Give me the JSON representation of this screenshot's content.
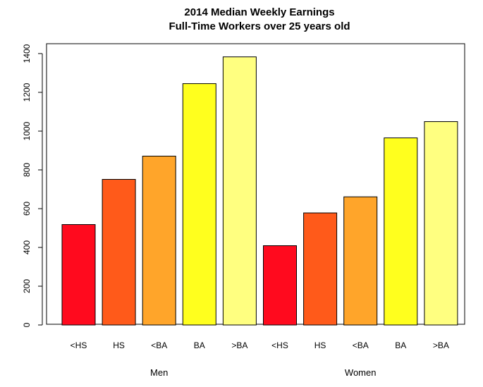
{
  "chart_data": {
    "type": "bar",
    "title": "2014 Median Weekly Earnings",
    "subtitle": "Full-Time Workers over 25 years old",
    "xlabel": "",
    "ylabel": "",
    "ylim": [
      0,
      1400
    ],
    "yticks": [
      0,
      200,
      400,
      600,
      800,
      1000,
      1200,
      1400
    ],
    "grid": false,
    "legend": "none",
    "groups": [
      {
        "name": "Men",
        "categories": [
          "<HS",
          "HS",
          "<BA",
          "BA",
          ">BA"
        ],
        "values": [
          518,
          751,
          871,
          1245,
          1383
        ]
      },
      {
        "name": "Women",
        "categories": [
          "<HS",
          "HS",
          "<BA",
          "BA",
          ">BA"
        ],
        "values": [
          409,
          578,
          661,
          965,
          1049
        ]
      }
    ],
    "colors": [
      "#FF0A1E",
      "#FF5A1A",
      "#FFA52A",
      "#FFFF1E",
      "#FFFF80"
    ]
  }
}
